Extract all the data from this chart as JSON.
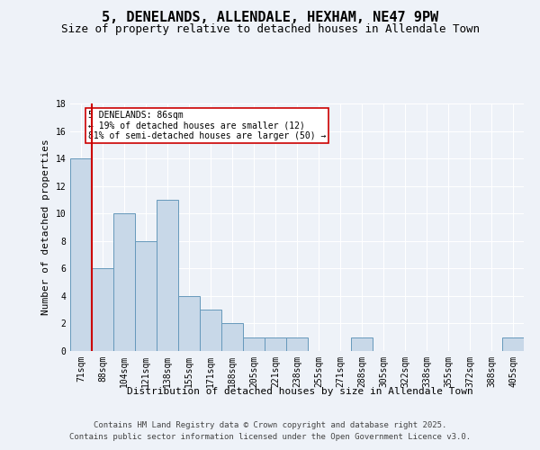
{
  "title1": "5, DENELANDS, ALLENDALE, HEXHAM, NE47 9PW",
  "title2": "Size of property relative to detached houses in Allendale Town",
  "xlabel": "Distribution of detached houses by size in Allendale Town",
  "ylabel": "Number of detached properties",
  "categories": [
    "71sqm",
    "88sqm",
    "104sqm",
    "121sqm",
    "138sqm",
    "155sqm",
    "171sqm",
    "188sqm",
    "205sqm",
    "221sqm",
    "238sqm",
    "255sqm",
    "271sqm",
    "288sqm",
    "305sqm",
    "322sqm",
    "338sqm",
    "355sqm",
    "372sqm",
    "388sqm",
    "405sqm"
  ],
  "values": [
    14,
    6,
    10,
    8,
    11,
    4,
    3,
    2,
    1,
    1,
    1,
    0,
    0,
    1,
    0,
    0,
    0,
    0,
    0,
    0,
    1
  ],
  "bar_color": "#c8d8e8",
  "bar_edge_color": "#6699bb",
  "annotation_text": "5 DENELANDS: 86sqm\n← 19% of detached houses are smaller (12)\n81% of semi-detached houses are larger (50) →",
  "annotation_box_color": "#ffffff",
  "annotation_box_edge": "#cc0000",
  "vline_color": "#cc0000",
  "background_color": "#eef2f8",
  "grid_color": "#ffffff",
  "ylim": [
    0,
    18
  ],
  "yticks": [
    0,
    2,
    4,
    6,
    8,
    10,
    12,
    14,
    16,
    18
  ],
  "footer_line1": "Contains HM Land Registry data © Crown copyright and database right 2025.",
  "footer_line2": "Contains public sector information licensed under the Open Government Licence v3.0.",
  "title1_fontsize": 11,
  "title2_fontsize": 9,
  "axis_fontsize": 8,
  "tick_fontsize": 7,
  "annotation_fontsize": 7,
  "footer_fontsize": 6.5
}
